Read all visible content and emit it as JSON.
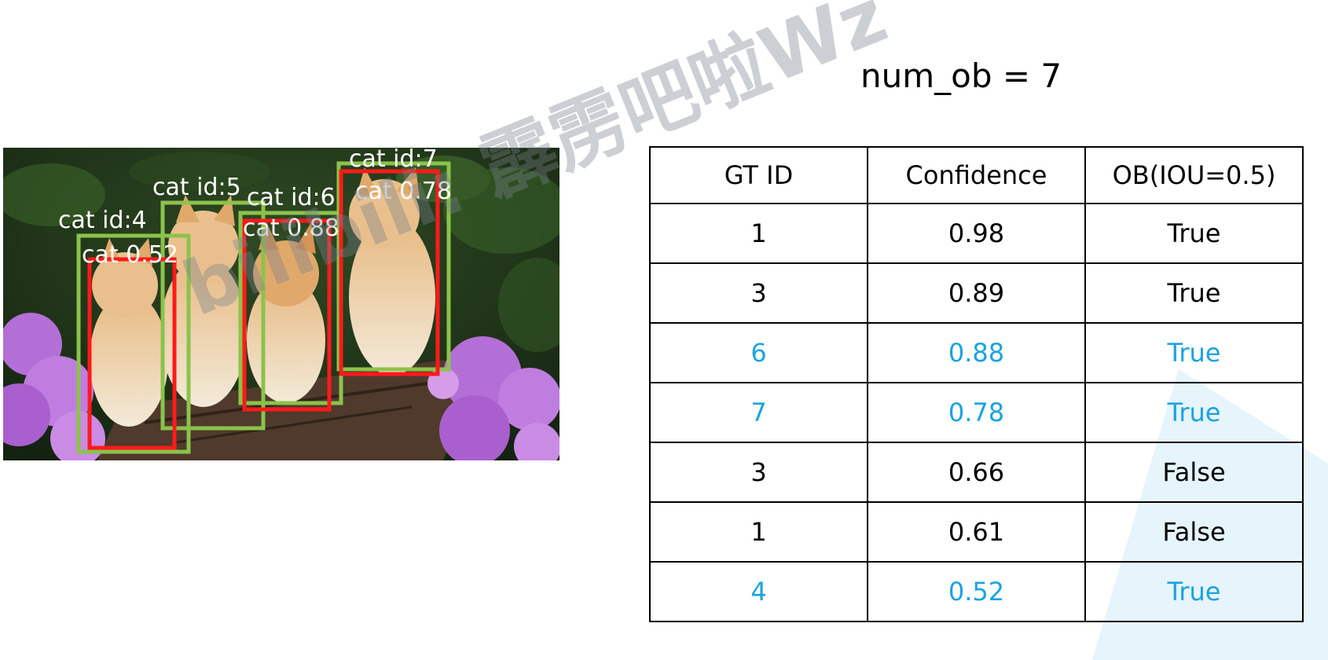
{
  "title": "num_ob = 7",
  "watermark": "bilibili: 霹雳吧啦Wz",
  "photo": {
    "subject": "four kittens on a log with purple flowers",
    "ground_truth_color": "#8bc34a",
    "prediction_color": "#ff1a1a",
    "ground_truth_boxes": [
      {
        "label": "cat id:4"
      },
      {
        "label": "cat id:5"
      },
      {
        "label": "cat id:6"
      },
      {
        "label": "cat id:7"
      }
    ],
    "prediction_boxes": [
      {
        "label": "cat 0.52"
      },
      {
        "label": "cat 0.88"
      },
      {
        "label": "cat 0.78"
      }
    ]
  },
  "table": {
    "headers": [
      "GT ID",
      "Confidence",
      "OB(IOU=0.5)"
    ],
    "highlight_color": "#1aa3e0",
    "rows": [
      {
        "gt_id": "1",
        "confidence": "0.98",
        "ob": "True",
        "highlight": false
      },
      {
        "gt_id": "3",
        "confidence": "0.89",
        "ob": "True",
        "highlight": false
      },
      {
        "gt_id": "6",
        "confidence": "0.88",
        "ob": "True",
        "highlight": true
      },
      {
        "gt_id": "7",
        "confidence": "0.78",
        "ob": "True",
        "highlight": true
      },
      {
        "gt_id": "3",
        "confidence": "0.66",
        "ob": "False",
        "highlight": false
      },
      {
        "gt_id": "1",
        "confidence": "0.61",
        "ob": "False",
        "highlight": false
      },
      {
        "gt_id": "4",
        "confidence": "0.52",
        "ob": "True",
        "highlight": true
      }
    ]
  }
}
